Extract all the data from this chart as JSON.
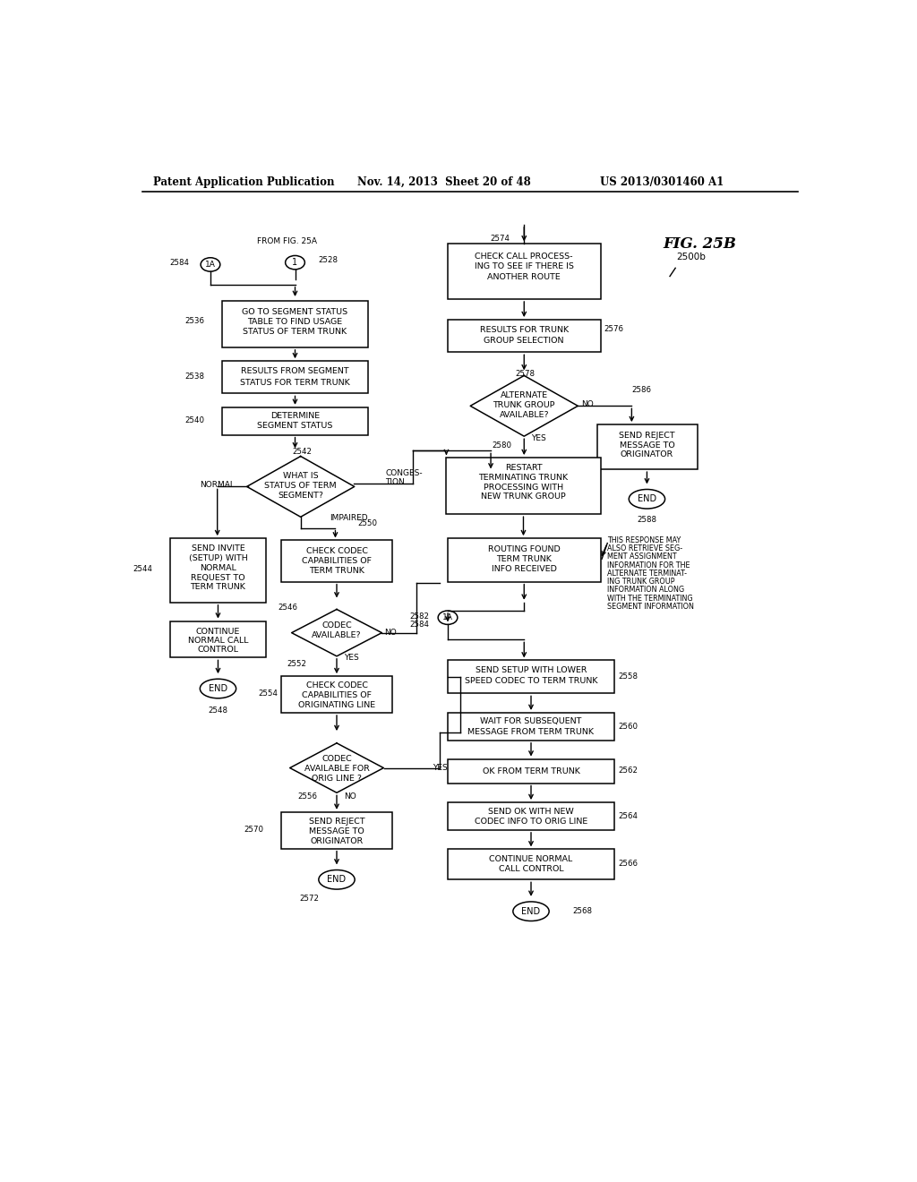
{
  "background": "#ffffff",
  "header1": "Patent Application Publication",
  "header2": "Nov. 14, 2013  Sheet 20 of 48",
  "header3": "US 2013/0301460 A1",
  "fig_label": "FIG. 25B",
  "fig_sub": "2500b"
}
